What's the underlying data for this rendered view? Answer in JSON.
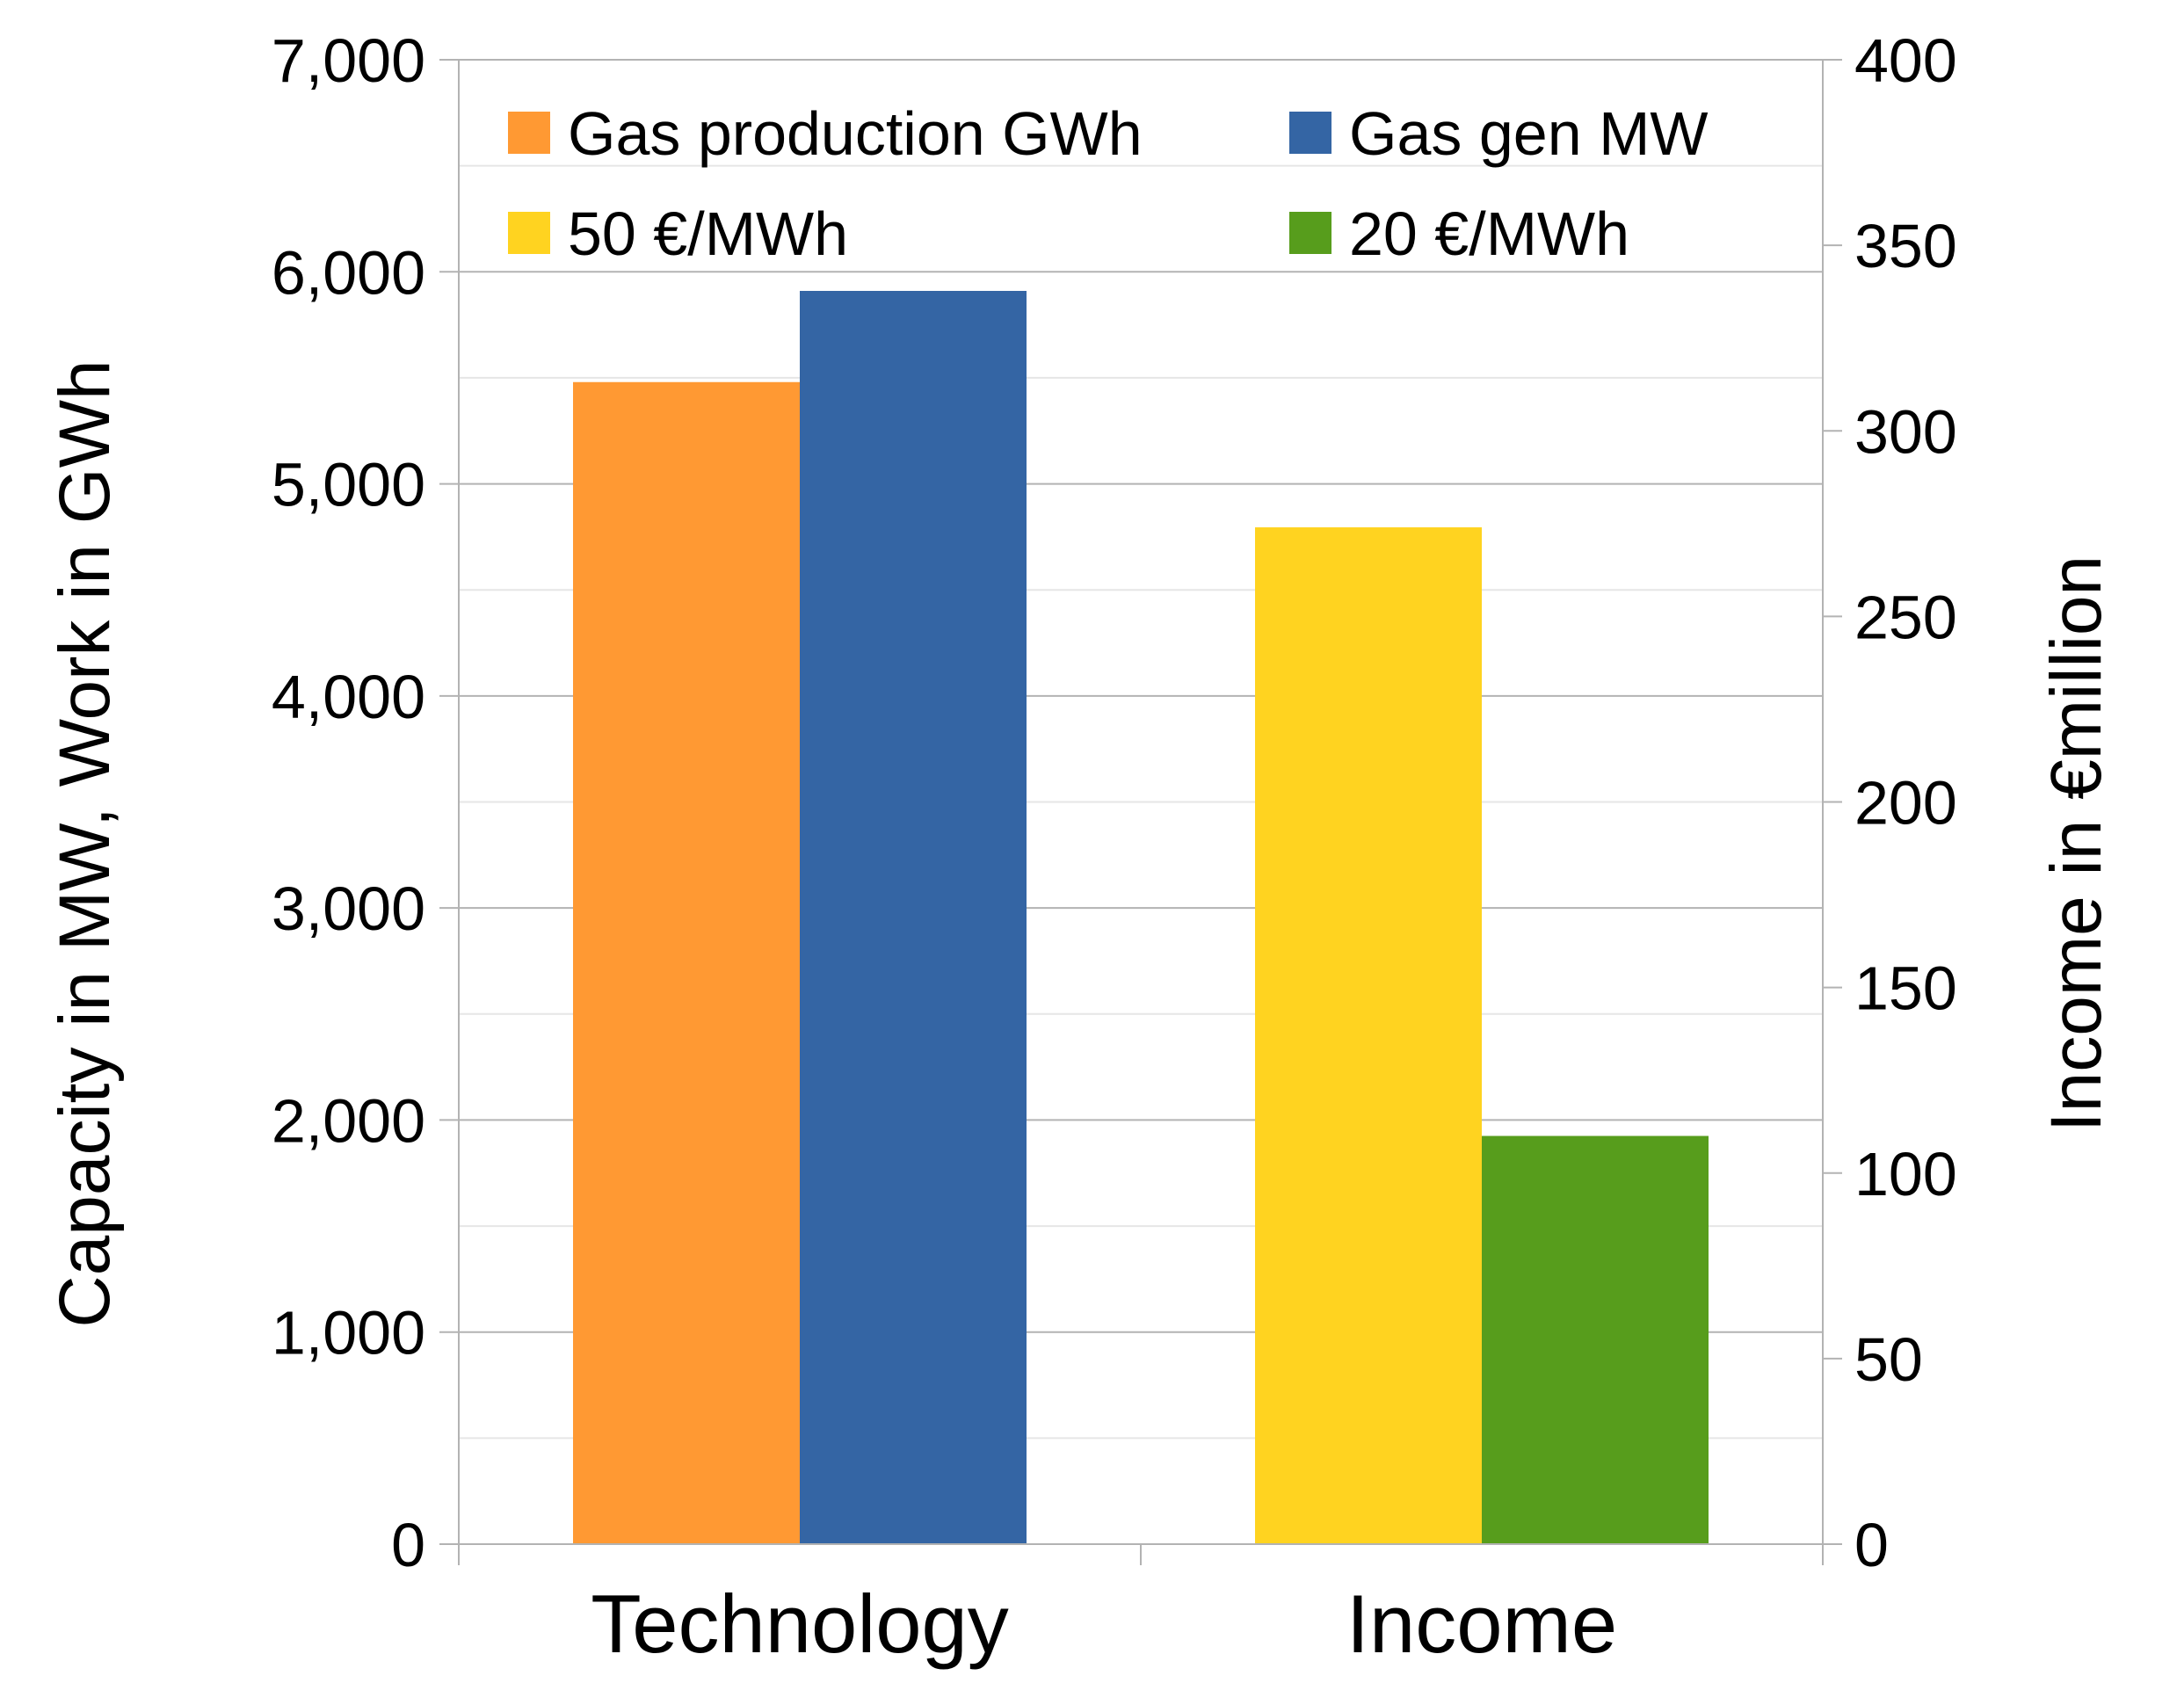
{
  "chart_data": {
    "type": "bar",
    "categories": [
      "Technology",
      "Income"
    ],
    "series": [
      {
        "name": "Gas production GWh",
        "axis": "left",
        "color": "#FF9933",
        "values": [
          5480,
          null
        ]
      },
      {
        "name": "Gas gen MW",
        "axis": "left",
        "color": "#3465A4",
        "values": [
          5910,
          null
        ]
      },
      {
        "name": "50 €/MWh",
        "axis": "right",
        "color": "#FFD320",
        "values": [
          null,
          274
        ]
      },
      {
        "name": "20 €/MWh",
        "axis": "right",
        "color": "#579D1C",
        "values": [
          null,
          110
        ]
      }
    ],
    "ylabel_left": "Capacity in MW, Work in GWh",
    "ylabel_right": "Income in €million",
    "ylim_left": [
      0,
      7000
    ],
    "ylim_right": [
      0,
      400
    ],
    "yticks_left": [
      {
        "value": 0,
        "label": "0"
      },
      {
        "value": 1000,
        "label": "1,000"
      },
      {
        "value": 2000,
        "label": "2,000"
      },
      {
        "value": 3000,
        "label": "3,000"
      },
      {
        "value": 4000,
        "label": "4,000"
      },
      {
        "value": 5000,
        "label": "5,000"
      },
      {
        "value": 6000,
        "label": "6,000"
      },
      {
        "value": 7000,
        "label": "7,000"
      }
    ],
    "yticks_right": [
      {
        "value": 0,
        "label": "0"
      },
      {
        "value": 50,
        "label": "50"
      },
      {
        "value": 100,
        "label": "100"
      },
      {
        "value": 150,
        "label": "150"
      },
      {
        "value": 200,
        "label": "200"
      },
      {
        "value": 250,
        "label": "250"
      },
      {
        "value": 300,
        "label": "300"
      },
      {
        "value": 350,
        "label": "350"
      },
      {
        "value": 400,
        "label": "400"
      }
    ],
    "grid": true,
    "legend_position": "top"
  }
}
